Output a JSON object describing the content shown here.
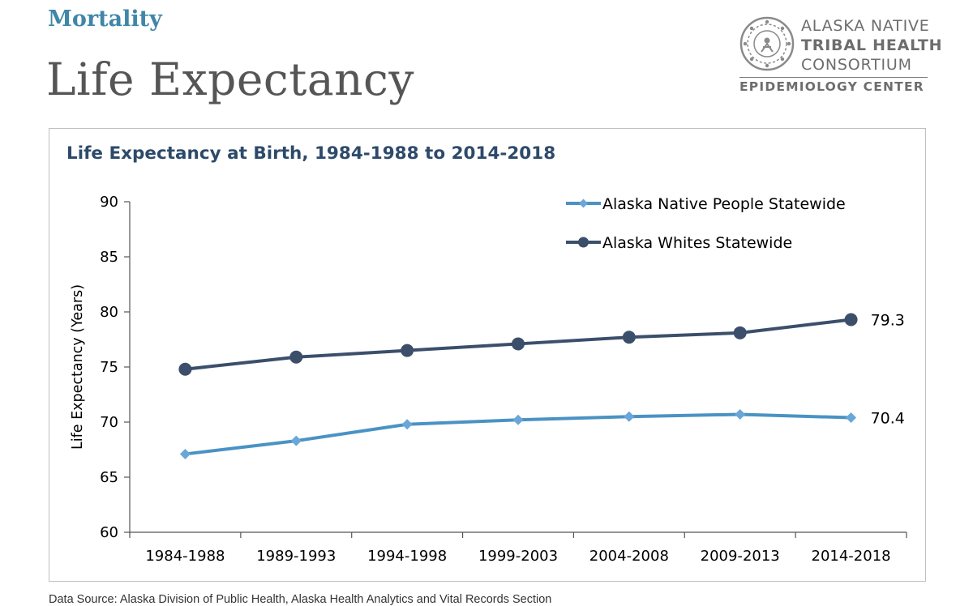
{
  "header": {
    "section": "Mortality",
    "title": "Life Expectancy"
  },
  "logo": {
    "line1": "ALASKA NATIVE",
    "line2": "TRIBAL HEALTH",
    "line3": "CONSORTIUM",
    "center": "EPIDEMIOLOGY CENTER"
  },
  "footer": {
    "source": "Data Source: Alaska Division of Public Health, Alaska Health Analytics and Vital Records Section"
  },
  "colors": {
    "native": "#4a92c4",
    "native_marker": "#6aa6d8",
    "whites": "#3b4f6b",
    "title": "#2d4a6a"
  },
  "chart_data": {
    "type": "line",
    "title": "Life Expectancy at Birth, 1984-1988 to 2014-2018",
    "xlabel": "",
    "ylabel": "Life Expectancy (Years)",
    "ylim": [
      60,
      90
    ],
    "yticks": [
      60,
      65,
      70,
      75,
      80,
      85,
      90
    ],
    "categories": [
      "1984-1988",
      "1989-1993",
      "1994-1998",
      "1999-2003",
      "2004-2008",
      "2009-2013",
      "2014-2018"
    ],
    "series": [
      {
        "name": "Alaska Native People Statewide",
        "values": [
          67.1,
          68.3,
          69.8,
          70.2,
          70.5,
          70.7,
          70.4
        ],
        "marker": "diamond",
        "end_label": "70.4"
      },
      {
        "name": "Alaska Whites Statewide",
        "values": [
          74.8,
          75.9,
          76.5,
          77.1,
          77.7,
          78.1,
          79.3
        ],
        "marker": "circle",
        "end_label": "79.3"
      }
    ],
    "grid": false,
    "legend": "top-right"
  }
}
